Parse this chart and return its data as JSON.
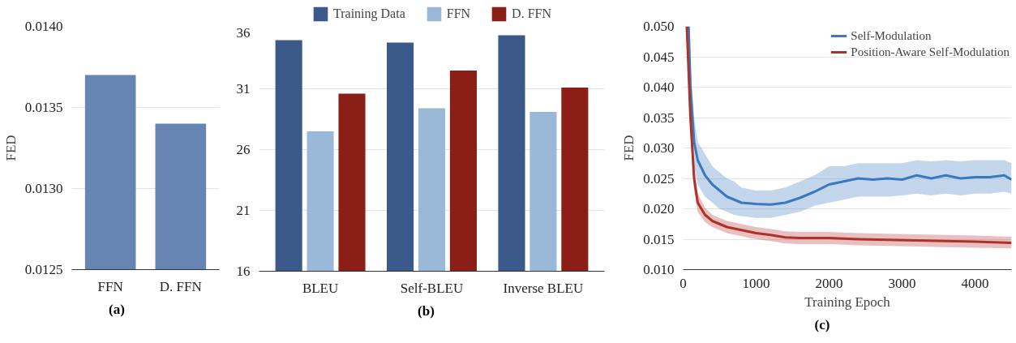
{
  "chart_data": [
    {
      "type": "bar",
      "title": "(a)",
      "ylabel": "FED",
      "categories": [
        "FFN",
        "D. FFN"
      ],
      "values": [
        0.0137,
        0.0134
      ],
      "color": "#6785b3",
      "ylim": [
        0.0125,
        0.014
      ],
      "yticks": [
        {
          "value": 0.0125,
          "label": "0.0125"
        },
        {
          "value": 0.013,
          "label": "0.0130"
        },
        {
          "value": 0.0135,
          "label": "0.0135"
        },
        {
          "value": 0.014,
          "label": "0.0140"
        }
      ],
      "grid": "y"
    },
    {
      "type": "bar",
      "title": "(b)",
      "categories": [
        "BLEU",
        "Self-BLEU",
        "Inverse BLEU"
      ],
      "series": [
        {
          "name": "Training Data",
          "color": "#3b5a8a",
          "values": [
            35.0,
            34.8,
            35.4
          ]
        },
        {
          "name": "FFN",
          "color": "#9ab8d8",
          "values": [
            27.5,
            29.4,
            29.1
          ]
        },
        {
          "name": "D. FFN",
          "color": "#8b1e16",
          "values": [
            30.6,
            32.5,
            31.1
          ]
        }
      ],
      "ylim": [
        16,
        36
      ],
      "yticks": [
        16,
        21,
        26,
        31,
        36
      ],
      "grid": "y",
      "legend": "top"
    },
    {
      "type": "line",
      "title": "(c)",
      "xlabel": "Training Epoch",
      "ylabel": "FED",
      "series": [
        {
          "name": "Self-Modulation",
          "color": "#3a78c0",
          "x": [
            75,
            100,
            150,
            200,
            300,
            400,
            500,
            600,
            700,
            800,
            1000,
            1200,
            1400,
            1600,
            1800,
            2000,
            2200,
            2400,
            2600,
            2800,
            3000,
            3200,
            3400,
            3600,
            3800,
            4000,
            4200,
            4400,
            4500
          ],
          "values": [
            0.05,
            0.04,
            0.031,
            0.028,
            0.0255,
            0.024,
            0.023,
            0.022,
            0.0215,
            0.021,
            0.0208,
            0.0207,
            0.021,
            0.0218,
            0.0228,
            0.024,
            0.0245,
            0.025,
            0.0248,
            0.025,
            0.0248,
            0.0255,
            0.025,
            0.0255,
            0.025,
            0.0252,
            0.0252,
            0.0255,
            0.0248
          ],
          "lower": [
            0.048,
            0.036,
            0.027,
            0.024,
            0.022,
            0.021,
            0.02,
            0.0195,
            0.019,
            0.0188,
            0.0185,
            0.0185,
            0.019,
            0.0195,
            0.0205,
            0.021,
            0.0215,
            0.022,
            0.022,
            0.022,
            0.0222,
            0.0225,
            0.0222,
            0.0225,
            0.0222,
            0.0225,
            0.0225,
            0.0228,
            0.0225
          ],
          "upper": [
            0.05,
            0.044,
            0.035,
            0.031,
            0.029,
            0.027,
            0.026,
            0.025,
            0.0245,
            0.0235,
            0.023,
            0.023,
            0.0235,
            0.0245,
            0.0255,
            0.027,
            0.027,
            0.0275,
            0.0275,
            0.0275,
            0.0275,
            0.028,
            0.0278,
            0.028,
            0.0278,
            0.028,
            0.028,
            0.028,
            0.0275
          ]
        },
        {
          "name": "Position-Aware Self-Modulation",
          "color": "#b0302a",
          "x": [
            50,
            100,
            150,
            200,
            300,
            400,
            500,
            600,
            800,
            1000,
            1200,
            1400,
            1600,
            2000,
            2400,
            2800,
            3200,
            3600,
            4000,
            4500
          ],
          "values": [
            0.05,
            0.035,
            0.025,
            0.021,
            0.019,
            0.018,
            0.0175,
            0.017,
            0.0165,
            0.016,
            0.0157,
            0.0153,
            0.0152,
            0.0152,
            0.015,
            0.0149,
            0.0148,
            0.0147,
            0.0146,
            0.0144
          ],
          "lower": [
            0.048,
            0.032,
            0.023,
            0.0195,
            0.0178,
            0.017,
            0.0165,
            0.016,
            0.0155,
            0.015,
            0.0147,
            0.0143,
            0.0142,
            0.0142,
            0.014,
            0.0139,
            0.0138,
            0.0137,
            0.0136,
            0.0135
          ],
          "upper": [
            0.05,
            0.038,
            0.027,
            0.0225,
            0.0202,
            0.019,
            0.0185,
            0.018,
            0.0175,
            0.017,
            0.0167,
            0.0163,
            0.0162,
            0.0162,
            0.016,
            0.0159,
            0.0158,
            0.0157,
            0.0156,
            0.0154
          ]
        }
      ],
      "xlim": [
        0,
        4500
      ],
      "xticks": [
        0,
        1000,
        2000,
        3000,
        4000
      ],
      "ylim": [
        0.01,
        0.05
      ],
      "yticks": [
        {
          "value": 0.01,
          "label": "0.010"
        },
        {
          "value": 0.015,
          "label": "0.015"
        },
        {
          "value": 0.02,
          "label": "0.020"
        },
        {
          "value": 0.025,
          "label": "0.025"
        },
        {
          "value": 0.03,
          "label": "0.030"
        },
        {
          "value": 0.035,
          "label": "0.035"
        },
        {
          "value": 0.04,
          "label": "0.040"
        },
        {
          "value": 0.045,
          "label": "0.045"
        },
        {
          "value": 0.05,
          "label": "0.050"
        }
      ],
      "grid": "y",
      "legend": "top right"
    }
  ]
}
